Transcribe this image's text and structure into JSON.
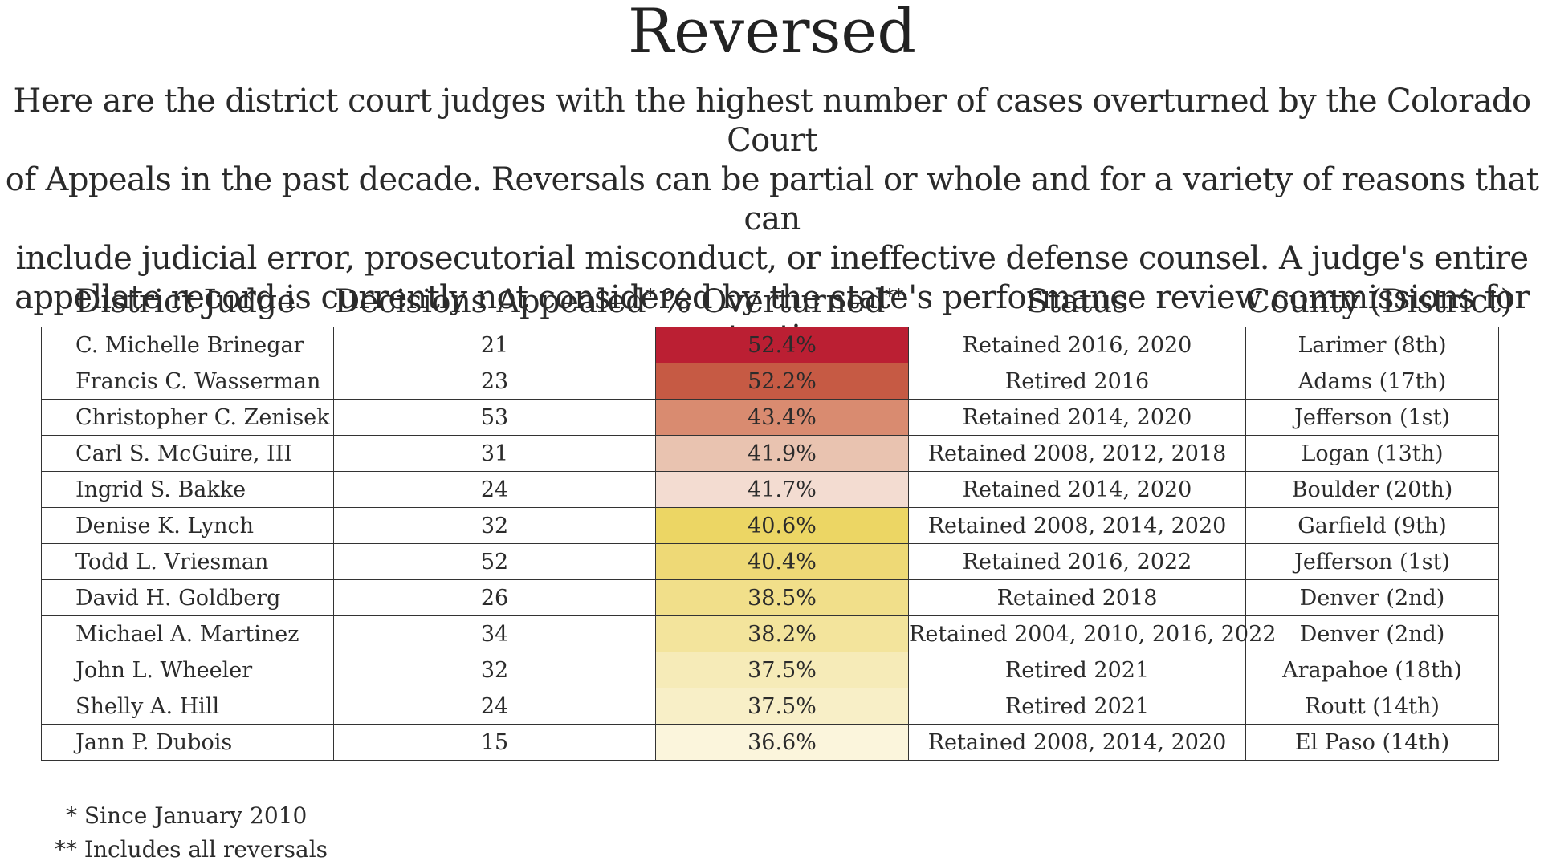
{
  "title": "Reversed",
  "subtitle_lines": [
    "Here are the district court judges with the highest number of cases overturned by the Colorado Court",
    "of Appeals in the past decade. Reversals can be partial or whole and for a variety of reasons that can",
    "include judicial error, prosecutorial misconduct, or ineffective defense counsel. A judge's entire",
    "appellate record is currently not considered by the state's performance review commissions for retention."
  ],
  "headers": {
    "judge": "District Judge",
    "decisions": "Decisions Appealed",
    "decisions_mark": "*",
    "overturned": "% Overturned",
    "overturned_mark": "**",
    "status": "Status",
    "county": "County (District)"
  },
  "footnotes": [
    {
      "mark": "*",
      "text": "Since January 2010"
    },
    {
      "mark": "**",
      "text": "Includes all reversals"
    }
  ],
  "chart_data": {
    "type": "table",
    "columns": [
      "District Judge",
      "Decisions Appealed*",
      "% Overturned**",
      "Status",
      "County (District)"
    ],
    "rows": [
      {
        "judge": "C. Michelle Brinegar",
        "decisions": 21,
        "overturned": "52.4%",
        "overturned_value": 52.4,
        "status": "Retained 2016, 2020",
        "county": "Larimer (8th)",
        "color": "#bb1f33"
      },
      {
        "judge": "Francis C. Wasserman",
        "decisions": 23,
        "overturned": "52.2%",
        "overturned_value": 52.2,
        "status": "Retired 2016",
        "county": "Adams (17th)",
        "color": "#c65a44"
      },
      {
        "judge": "Christopher C. Zenisek",
        "decisions": 53,
        "overturned": "43.4%",
        "overturned_value": 43.4,
        "status": "Retained 2014, 2020",
        "county": "Jefferson (1st)",
        "color": "#d98b70"
      },
      {
        "judge": "Carl S. McGuire, III",
        "decisions": 31,
        "overturned": "41.9%",
        "overturned_value": 41.9,
        "status": "Retained 2008, 2012, 2018",
        "county": "Logan (13th)",
        "color": "#e9c3b0"
      },
      {
        "judge": "Ingrid S. Bakke",
        "decisions": 24,
        "overturned": "41.7%",
        "overturned_value": 41.7,
        "status": "Retained 2014, 2020",
        "county": "Boulder (20th)",
        "color": "#f3dcd1"
      },
      {
        "judge": "Denise K. Lynch",
        "decisions": 32,
        "overturned": "40.6%",
        "overturned_value": 40.6,
        "status": "Retained 2008, 2014, 2020",
        "county": "Garfield (9th)",
        "color": "#ecd664"
      },
      {
        "judge": "Todd L. Vriesman",
        "decisions": 52,
        "overturned": "40.4%",
        "overturned_value": 40.4,
        "status": "Retained 2016, 2022",
        "county": "Jefferson (1st)",
        "color": "#eed976"
      },
      {
        "judge": "David H. Goldberg",
        "decisions": 26,
        "overturned": "38.5%",
        "overturned_value": 38.5,
        "status": "Retained 2018",
        "county": "Denver (2nd)",
        "color": "#f1df8a"
      },
      {
        "judge": "Michael A. Martinez",
        "decisions": 34,
        "overturned": "38.2%",
        "overturned_value": 38.2,
        "status": "Retained 2004, 2010, 2016, 2022",
        "county": "Denver (2nd)",
        "color": "#f3e49c"
      },
      {
        "judge": "John L. Wheeler",
        "decisions": 32,
        "overturned": "37.5%",
        "overturned_value": 37.5,
        "status": "Retired 2021",
        "county": "Arapahoe (18th)",
        "color": "#f6ebb8"
      },
      {
        "judge": "Shelly A. Hill",
        "decisions": 24,
        "overturned": "37.5%",
        "overturned_value": 37.5,
        "status": "Retired 2021",
        "county": "Routt (14th)",
        "color": "#f8efc7"
      },
      {
        "judge": "Jann P. Dubois",
        "decisions": 15,
        "overturned": "36.6%",
        "overturned_value": 36.6,
        "status": "Retained 2008, 2014, 2020",
        "county": "El Paso (14th)",
        "color": "#fbf5dc"
      }
    ]
  }
}
